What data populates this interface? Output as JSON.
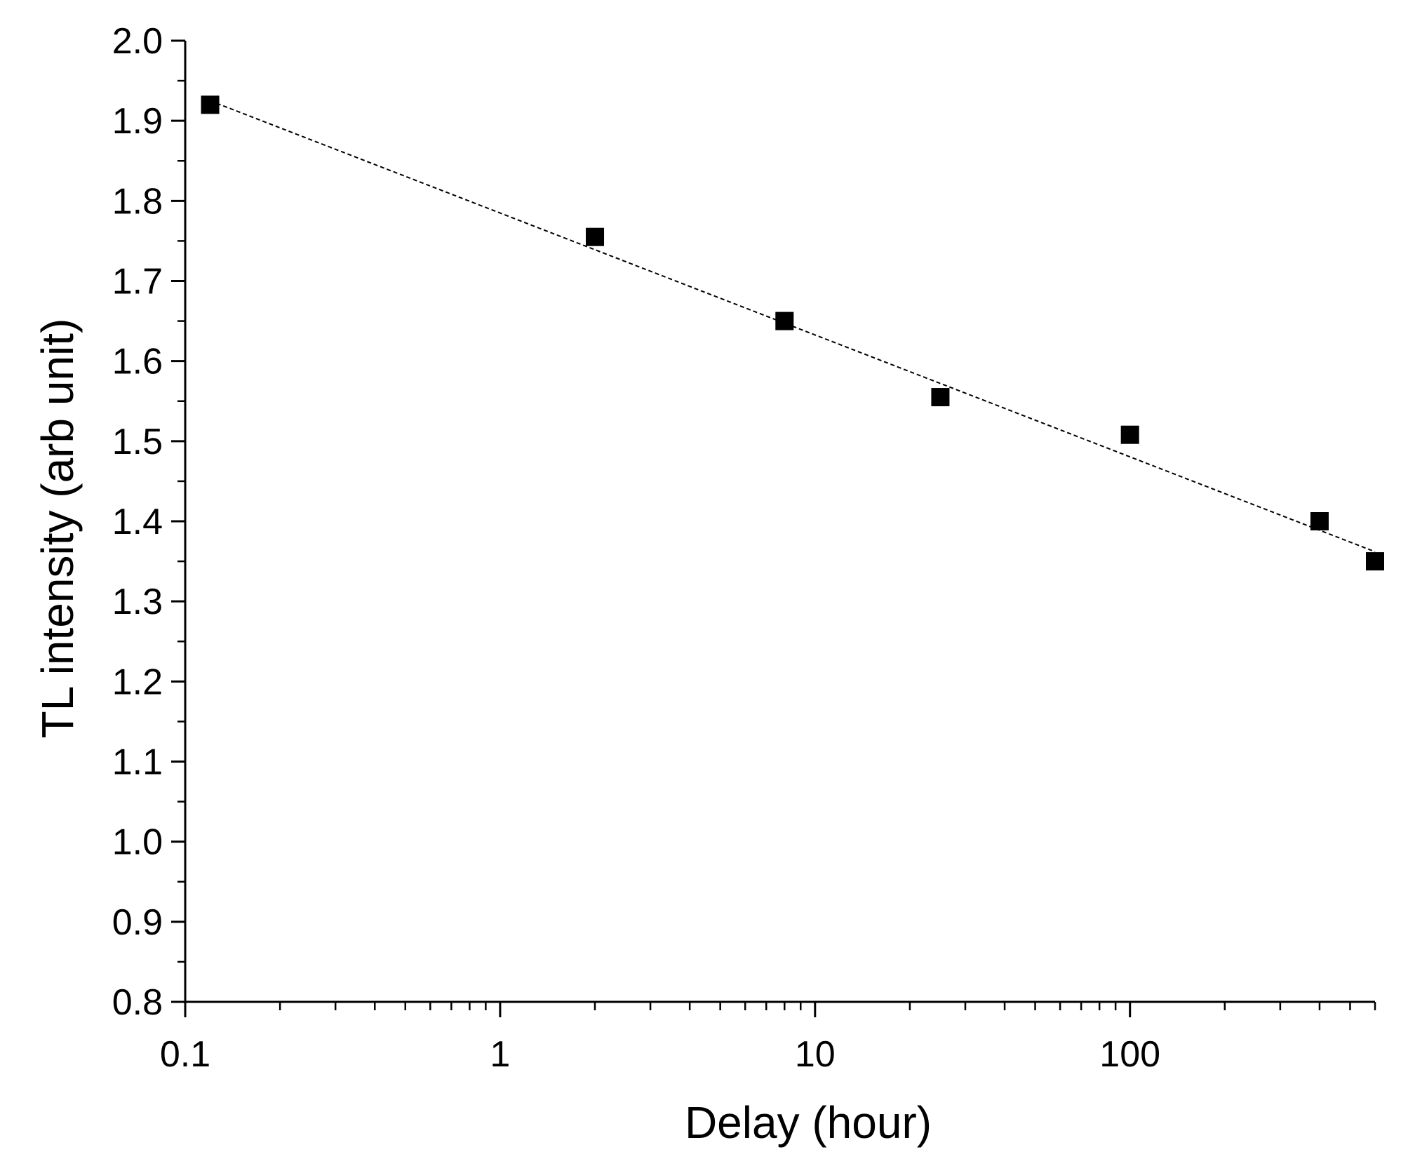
{
  "chart_data": {
    "type": "scatter",
    "title": "",
    "xlabel": "Delay (hour)",
    "ylabel": "TL intensity (arb unit)",
    "x_scale": "log",
    "xlim": [
      0.1,
      600
    ],
    "ylim": [
      0.8,
      2.0
    ],
    "x_ticks": [
      0.1,
      1,
      10,
      100
    ],
    "x_tick_labels": [
      "0.1",
      "1",
      "10",
      "100"
    ],
    "y_ticks": [
      0.8,
      0.9,
      1.0,
      1.1,
      1.2,
      1.3,
      1.4,
      1.5,
      1.6,
      1.7,
      1.8,
      1.9,
      2.0
    ],
    "y_tick_labels": [
      "0.8",
      "0.9",
      "1.0",
      "1.1",
      "1.2",
      "1.3",
      "1.4",
      "1.5",
      "1.6",
      "1.7",
      "1.8",
      "1.9",
      "2.0"
    ],
    "grid": false,
    "series": [
      {
        "marker": "filled-square",
        "color": "#000000",
        "x": [
          0.12,
          2,
          8,
          25,
          100,
          400,
          600
        ],
        "y": [
          1.92,
          1.755,
          1.65,
          1.555,
          1.508,
          1.4,
          1.35
        ]
      }
    ],
    "fit_line": {
      "style": "dashed",
      "color": "#000000",
      "x": [
        0.12,
        600
      ],
      "y": [
        1.925,
        1.362
      ]
    }
  }
}
